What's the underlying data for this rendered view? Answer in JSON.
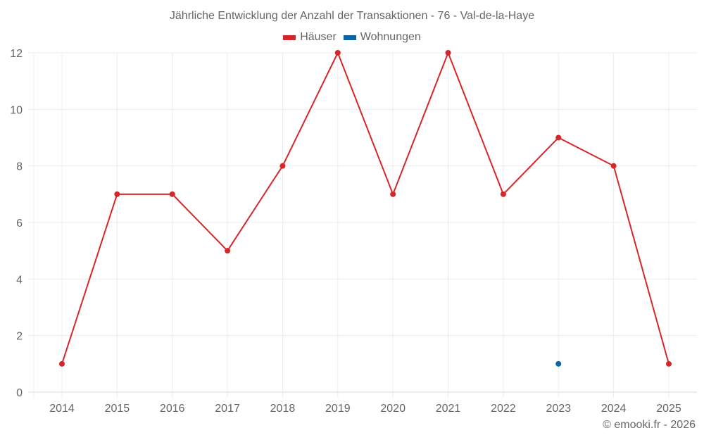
{
  "header": {
    "title": "Jährliche Entwicklung der Anzahl der Transaktionen - 76 - Val-de-la-Haye"
  },
  "legend": [
    {
      "label": "Häuser",
      "color": "#d62728"
    },
    {
      "label": "Wohnungen",
      "color": "#0b66a3"
    }
  ],
  "credit": "© emooki.fr - 2026",
  "chart_data": {
    "type": "line",
    "title": "Jährliche Entwicklung der Anzahl der Transaktionen - 76 - Val-de-la-Haye",
    "xlabel": "",
    "ylabel": "",
    "categories": [
      "2014",
      "2015",
      "2016",
      "2017",
      "2018",
      "2019",
      "2020",
      "2021",
      "2022",
      "2023",
      "2024",
      "2025"
    ],
    "series": [
      {
        "name": "Häuser",
        "color": "#d62728",
        "values": [
          1,
          7,
          7,
          5,
          8,
          12,
          7,
          12,
          7,
          9,
          8,
          1
        ]
      },
      {
        "name": "Wohnungen",
        "color": "#0b66a3",
        "values": [
          null,
          null,
          null,
          null,
          null,
          null,
          null,
          null,
          null,
          1,
          null,
          null
        ]
      }
    ],
    "ylim": [
      0,
      12
    ],
    "yticks": [
      0,
      2,
      4,
      6,
      8,
      10,
      12
    ],
    "grid": true,
    "legend_position": "top"
  }
}
